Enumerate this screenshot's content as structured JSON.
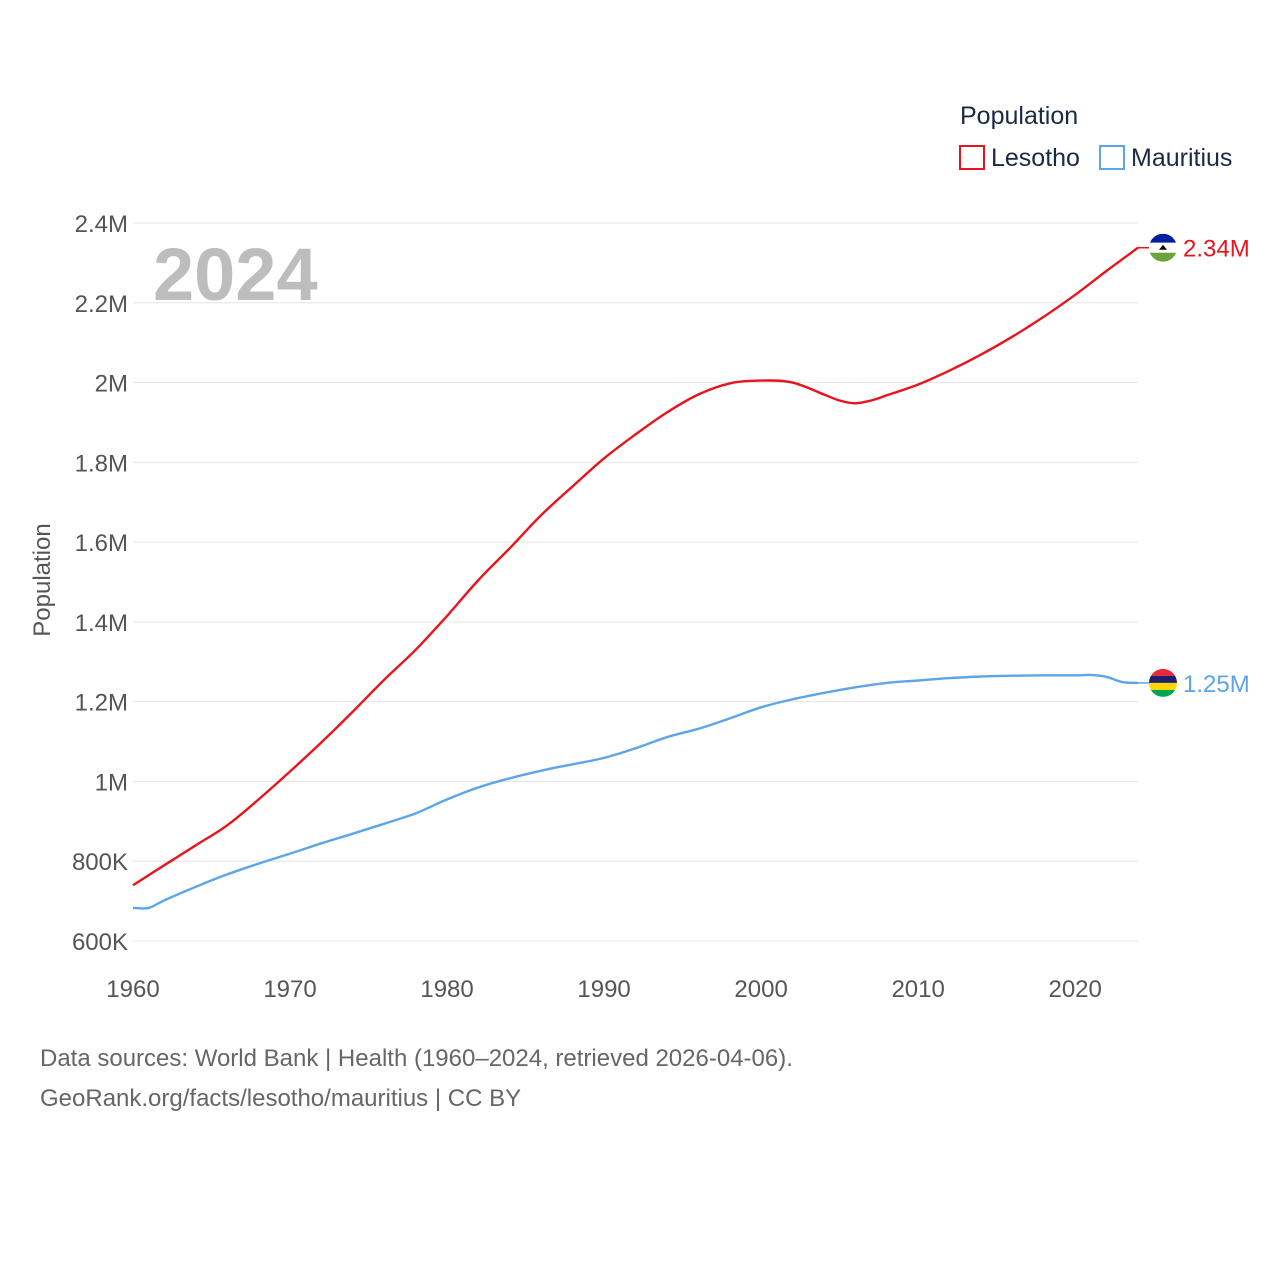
{
  "chart_data": {
    "type": "line",
    "year_label": "2024",
    "ylabel": "Population",
    "xlabel": "",
    "xlim": [
      1960,
      2024
    ],
    "ylim": [
      600000,
      2400000
    ],
    "x_ticks": [
      1960,
      1970,
      1980,
      1990,
      2000,
      2010,
      2020
    ],
    "y_ticks": [
      {
        "value": 600000,
        "label": "600K"
      },
      {
        "value": 800000,
        "label": "800K"
      },
      {
        "value": 1000000,
        "label": "1M"
      },
      {
        "value": 1200000,
        "label": "1.2M"
      },
      {
        "value": 1400000,
        "label": "1.4M"
      },
      {
        "value": 1600000,
        "label": "1.6M"
      },
      {
        "value": 1800000,
        "label": "1.8M"
      },
      {
        "value": 2000000,
        "label": "2M"
      },
      {
        "value": 2200000,
        "label": "2.2M"
      },
      {
        "value": 2400000,
        "label": "2.4M"
      }
    ],
    "legend": {
      "title": "Population",
      "position": "top-right"
    },
    "series": [
      {
        "name": "Lesotho",
        "color": "#e8141c",
        "end_label": "2.34M",
        "flag": "lesotho-flag",
        "x": [
          1960,
          1962,
          1964,
          1966,
          1968,
          1970,
          1972,
          1974,
          1976,
          1978,
          1980,
          1982,
          1984,
          1986,
          1988,
          1990,
          1992,
          1994,
          1996,
          1998,
          2000,
          2002,
          2004,
          2005,
          2006,
          2007,
          2008,
          2010,
          2012,
          2014,
          2016,
          2018,
          2020,
          2022,
          2024
        ],
        "values": [
          740000,
          790000,
          840000,
          890000,
          955000,
          1025000,
          1098000,
          1175000,
          1255000,
          1330000,
          1415000,
          1505000,
          1585000,
          1668000,
          1740000,
          1810000,
          1870000,
          1925000,
          1970000,
          1998000,
          2005000,
          2000000,
          1970000,
          1955000,
          1948000,
          1955000,
          1968000,
          1995000,
          2030000,
          2070000,
          2115000,
          2165000,
          2220000,
          2280000,
          2338000
        ]
      },
      {
        "name": "Mauritius",
        "color": "#5da5e8",
        "end_label": "1.25M",
        "flag": "mauritius-flag",
        "x": [
          1960,
          1961,
          1962,
          1964,
          1966,
          1968,
          1970,
          1972,
          1974,
          1976,
          1978,
          1980,
          1982,
          1984,
          1986,
          1988,
          1990,
          1992,
          1994,
          1996,
          1998,
          2000,
          2002,
          2004,
          2006,
          2008,
          2010,
          2012,
          2014,
          2016,
          2018,
          2020,
          2021,
          2022,
          2023,
          2024
        ],
        "values": [
          683000,
          683000,
          702000,
          736000,
          767000,
          794000,
          819000,
          845000,
          869000,
          894000,
          920000,
          955000,
          985000,
          1008000,
          1027000,
          1043000,
          1059000,
          1083000,
          1111000,
          1132000,
          1158000,
          1186000,
          1206000,
          1222000,
          1236000,
          1247000,
          1253000,
          1259000,
          1263000,
          1265000,
          1266000,
          1266000,
          1267000,
          1262000,
          1249000,
          1247000
        ]
      }
    ],
    "footer": [
      "Data sources: World Bank | Health (1960–2024, retrieved 2026-04-06).",
      "GeoRank.org/facts/lesotho/mauritius | CC BY"
    ]
  }
}
